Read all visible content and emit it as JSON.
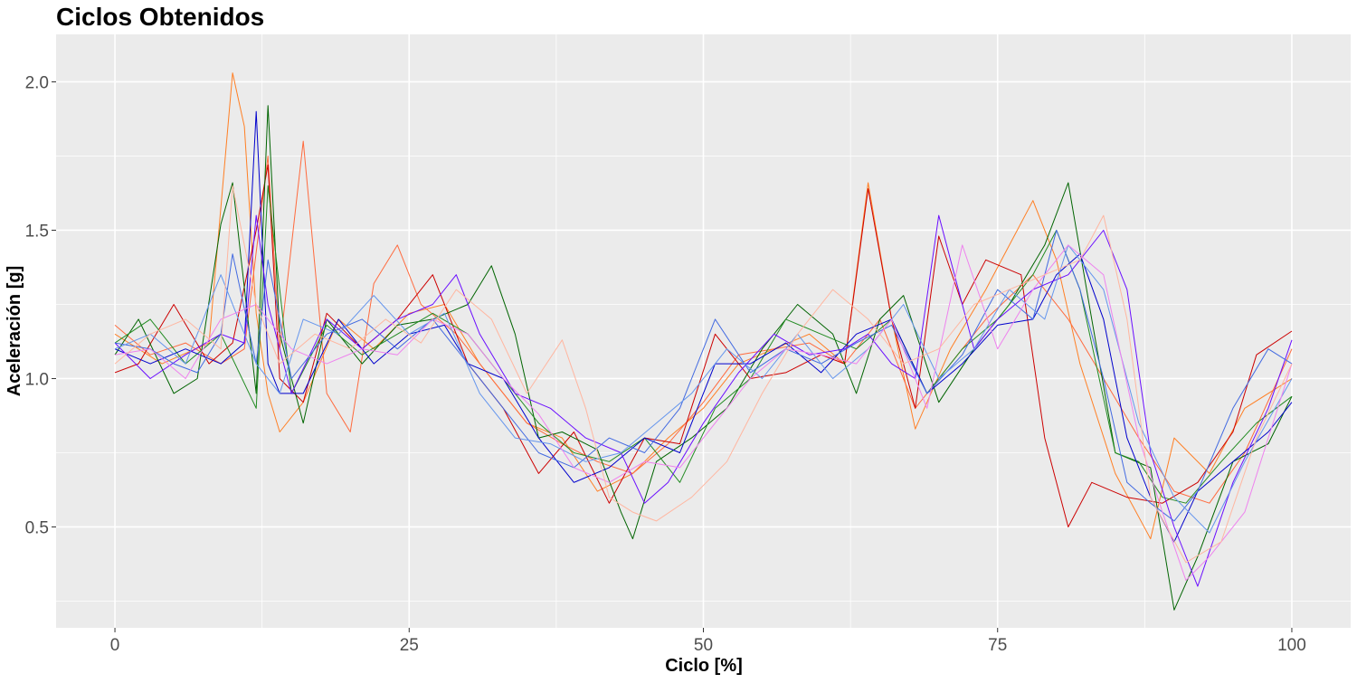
{
  "chart_data": {
    "type": "line",
    "title": "Ciclos Obtenidos",
    "xlabel": "Ciclo [%]",
    "ylabel": "Aceleración [g]",
    "xlim": [
      -5,
      105
    ],
    "ylim": [
      0.16,
      2.16
    ],
    "x_ticks": [
      0,
      25,
      50,
      75,
      100
    ],
    "y_ticks": [
      0.5,
      1.0,
      1.5,
      2.0
    ],
    "x_tick_labels": [
      "0",
      "25",
      "50",
      "75",
      "100"
    ],
    "y_tick_labels": [
      "0.5",
      "1.0",
      "1.5",
      "2.0"
    ],
    "grid": true,
    "legend": "none",
    "background": "#EBEBEB",
    "gridline_color": "#FFFFFF",
    "series": [
      {
        "color": "#FF7F24",
        "x": [
          0,
          4,
          8,
          10,
          11,
          12,
          13,
          14,
          16,
          19,
          22,
          25,
          28,
          31,
          35,
          38,
          41,
          44,
          47,
          50,
          53,
          56,
          59,
          62,
          64,
          66,
          68,
          71,
          74,
          78,
          80,
          82,
          85,
          88,
          90,
          93,
          96,
          100
        ],
        "y": [
          1.15,
          1.05,
          1.12,
          2.03,
          1.85,
          1.22,
          0.95,
          0.82,
          0.92,
          1.2,
          1.1,
          1.22,
          1.25,
          1.05,
          0.85,
          0.8,
          0.62,
          0.68,
          0.8,
          0.9,
          1.05,
          1.1,
          1.15,
          1.05,
          1.66,
          1.2,
          0.83,
          1.1,
          1.3,
          1.6,
          1.4,
          1.05,
          0.68,
          0.46,
          0.8,
          0.68,
          0.9,
          1.0
        ]
      },
      {
        "color": "#FF6A3D",
        "x": [
          0,
          3,
          6,
          9,
          11,
          13,
          14,
          16,
          18,
          20,
          22,
          24,
          26,
          29,
          32,
          35,
          38,
          41,
          44,
          47,
          50,
          53,
          56,
          59,
          62,
          65,
          68,
          71,
          74,
          78,
          81,
          84,
          87,
          90,
          93,
          96,
          100
        ],
        "y": [
          1.18,
          1.08,
          1.12,
          1.05,
          1.1,
          1.75,
          1.1,
          1.8,
          0.95,
          0.82,
          1.32,
          1.45,
          1.25,
          1.15,
          1.0,
          0.85,
          0.78,
          0.72,
          0.68,
          0.78,
          0.92,
          1.08,
          1.1,
          1.12,
          1.05,
          1.2,
          0.9,
          1.05,
          1.2,
          1.35,
          1.2,
          1.0,
          0.8,
          0.62,
          0.58,
          0.75,
          1.1
        ]
      },
      {
        "color": "#CC0000",
        "x": [
          0,
          2,
          5,
          8,
          10,
          12,
          13,
          14,
          16,
          18,
          21,
          24,
          27,
          30,
          33,
          36,
          39,
          42,
          45,
          48,
          51,
          54,
          57,
          60,
          62,
          64,
          66,
          68,
          70,
          72,
          74,
          77,
          79,
          81,
          83,
          86,
          89,
          92,
          95,
          97,
          100
        ],
        "y": [
          1.02,
          1.05,
          1.25,
          1.05,
          1.12,
          1.5,
          1.72,
          1.0,
          0.92,
          1.22,
          1.1,
          1.2,
          1.35,
          1.05,
          0.9,
          0.68,
          0.82,
          0.58,
          0.8,
          0.78,
          1.15,
          1.0,
          1.02,
          1.08,
          1.05,
          1.64,
          1.2,
          0.9,
          1.48,
          1.25,
          1.4,
          1.35,
          0.8,
          0.5,
          0.65,
          0.6,
          0.58,
          0.65,
          0.82,
          1.08,
          1.16
        ]
      },
      {
        "color": "#006400",
        "x": [
          0,
          2,
          5,
          7,
          9,
          10,
          12,
          13,
          14,
          16,
          18,
          21,
          24,
          27,
          30,
          32,
          34,
          36,
          38,
          41,
          43,
          44,
          46,
          49,
          52,
          55,
          58,
          61,
          63,
          65,
          67,
          70,
          73,
          76,
          79,
          81,
          83,
          85,
          88,
          90,
          92,
          95,
          98,
          100
        ],
        "y": [
          1.08,
          1.2,
          0.95,
          1.0,
          1.52,
          1.66,
          0.95,
          1.92,
          1.15,
          0.85,
          1.2,
          1.05,
          1.18,
          1.2,
          1.25,
          1.38,
          1.15,
          0.8,
          0.82,
          0.76,
          0.55,
          0.46,
          0.72,
          0.8,
          0.9,
          1.1,
          1.25,
          1.15,
          0.95,
          1.2,
          1.28,
          0.92,
          1.1,
          1.25,
          1.45,
          1.66,
          1.2,
          0.75,
          0.7,
          0.22,
          0.4,
          0.72,
          0.78,
          0.94
        ]
      },
      {
        "color": "#228B22",
        "x": [
          0,
          3,
          6,
          9,
          12,
          13,
          15,
          18,
          21,
          24,
          27,
          30,
          33,
          36,
          39,
          42,
          45,
          48,
          51,
          54,
          57,
          60,
          63,
          66,
          69,
          72,
          75,
          78,
          80,
          82,
          85,
          87,
          89,
          91,
          94,
          97,
          100
        ],
        "y": [
          1.12,
          1.2,
          1.05,
          1.15,
          0.9,
          1.65,
          0.95,
          1.18,
          1.08,
          1.15,
          1.22,
          1.15,
          1.0,
          0.85,
          0.75,
          0.72,
          0.8,
          0.65,
          0.9,
          1.0,
          1.2,
          1.15,
          1.1,
          1.2,
          0.95,
          1.1,
          1.2,
          1.35,
          1.5,
          1.3,
          0.75,
          0.72,
          0.6,
          0.58,
          0.72,
          0.85,
          0.94
        ]
      },
      {
        "color": "#0000CC",
        "x": [
          0,
          3,
          6,
          9,
          11,
          12,
          13,
          14,
          16,
          19,
          22,
          25,
          28,
          30,
          33,
          36,
          39,
          42,
          45,
          48,
          51,
          54,
          57,
          60,
          63,
          66,
          69,
          72,
          75,
          78,
          80,
          82,
          84,
          86,
          88,
          90,
          92,
          95,
          98,
          100
        ],
        "y": [
          1.1,
          1.05,
          1.1,
          1.05,
          1.12,
          1.9,
          1.05,
          0.95,
          0.95,
          1.2,
          1.05,
          1.15,
          1.18,
          1.05,
          1.0,
          0.8,
          0.65,
          0.7,
          0.8,
          0.75,
          1.05,
          1.05,
          1.12,
          1.02,
          1.15,
          1.2,
          0.95,
          1.05,
          1.18,
          1.2,
          1.35,
          1.42,
          1.2,
          0.8,
          0.6,
          0.45,
          0.62,
          0.72,
          0.82,
          0.92
        ]
      },
      {
        "color": "#6A0DFF",
        "x": [
          0,
          3,
          6,
          9,
          11,
          12,
          13,
          15,
          18,
          21,
          24,
          27,
          29,
          31,
          34,
          37,
          40,
          43,
          45,
          47,
          50,
          53,
          56,
          59,
          62,
          64,
          66,
          68,
          70,
          73,
          75,
          78,
          81,
          84,
          86,
          88,
          90,
          92,
          95,
          98,
          100
        ],
        "y": [
          1.12,
          1.0,
          1.08,
          1.15,
          1.12,
          1.55,
          1.25,
          0.95,
          1.2,
          1.1,
          1.2,
          1.25,
          1.35,
          1.15,
          0.95,
          0.9,
          0.8,
          0.75,
          0.58,
          0.65,
          0.85,
          1.02,
          1.15,
          1.08,
          1.1,
          1.15,
          1.05,
          1.0,
          1.55,
          1.1,
          1.2,
          1.3,
          1.35,
          1.5,
          1.3,
          0.75,
          0.5,
          0.3,
          0.65,
          0.9,
          1.13
        ]
      },
      {
        "color": "#4169E1",
        "x": [
          0,
          3,
          5,
          7,
          9,
          10,
          12,
          13,
          15,
          18,
          21,
          24,
          27,
          30,
          33,
          36,
          39,
          42,
          45,
          48,
          51,
          54,
          57,
          60,
          63,
          66,
          69,
          72,
          75,
          78,
          80,
          82,
          84,
          86,
          88,
          90,
          92,
          95,
          98,
          100
        ],
        "y": [
          1.12,
          1.1,
          1.05,
          1.02,
          1.15,
          1.42,
          1.05,
          1.4,
          1.0,
          1.15,
          1.2,
          1.1,
          1.2,
          1.05,
          0.9,
          0.75,
          0.7,
          0.8,
          0.75,
          0.9,
          1.2,
          1.02,
          1.1,
          1.05,
          1.12,
          1.18,
          0.95,
          1.08,
          1.3,
          1.2,
          1.5,
          1.3,
          1.0,
          0.65,
          0.58,
          0.52,
          0.62,
          0.9,
          1.1,
          1.05
        ]
      },
      {
        "color": "#6495ED",
        "x": [
          0,
          3,
          6,
          9,
          12,
          14,
          16,
          19,
          22,
          25,
          28,
          31,
          34,
          37,
          40,
          43,
          46,
          49,
          52,
          55,
          58,
          61,
          64,
          67,
          70,
          73,
          76,
          79,
          81,
          84,
          87,
          90,
          93,
          96,
          100
        ],
        "y": [
          1.1,
          1.15,
          1.05,
          1.35,
          1.05,
          0.95,
          1.2,
          1.15,
          1.28,
          1.15,
          1.22,
          0.95,
          0.8,
          0.78,
          0.72,
          0.75,
          0.85,
          0.95,
          1.1,
          1.0,
          1.15,
          1.0,
          1.1,
          1.25,
          1.0,
          1.1,
          1.3,
          1.2,
          1.45,
          1.3,
          0.85,
          0.6,
          0.48,
          0.72,
          1.0
        ]
      },
      {
        "color": "#EE82EE",
        "x": [
          0,
          3,
          6,
          9,
          12,
          15,
          18,
          21,
          24,
          27,
          30,
          33,
          36,
          39,
          42,
          45,
          48,
          51,
          54,
          57,
          60,
          63,
          66,
          69,
          72,
          75,
          78,
          81,
          84,
          87,
          89,
          91,
          93,
          96,
          100
        ],
        "y": [
          1.08,
          1.1,
          1.0,
          1.2,
          1.25,
          1.1,
          1.05,
          1.1,
          1.08,
          1.2,
          1.15,
          1.0,
          0.88,
          0.7,
          0.65,
          0.72,
          0.7,
          0.85,
          1.0,
          1.1,
          1.08,
          1.05,
          1.2,
          0.9,
          1.45,
          1.1,
          1.3,
          1.45,
          1.35,
          0.8,
          0.55,
          0.32,
          0.4,
          0.55,
          1.05
        ]
      },
      {
        "color": "#FFB6A0",
        "x": [
          0,
          3,
          6,
          9,
          10,
          12,
          14,
          17,
          20,
          23,
          26,
          29,
          32,
          35,
          38,
          40,
          42,
          44,
          46,
          49,
          52,
          55,
          58,
          61,
          64,
          67,
          70,
          73,
          76,
          79,
          82,
          84,
          86,
          88,
          91,
          94,
          97,
          100
        ],
        "y": [
          1.05,
          1.15,
          1.2,
          1.1,
          1.65,
          1.25,
          1.05,
          1.15,
          1.1,
          1.2,
          1.12,
          1.3,
          1.2,
          0.95,
          1.13,
          0.9,
          0.6,
          0.55,
          0.52,
          0.6,
          0.72,
          0.95,
          1.15,
          1.3,
          1.2,
          1.05,
          1.1,
          1.25,
          1.3,
          1.35,
          1.4,
          1.55,
          1.2,
          0.6,
          0.38,
          0.45,
          0.8,
          1.05
        ]
      }
    ]
  }
}
